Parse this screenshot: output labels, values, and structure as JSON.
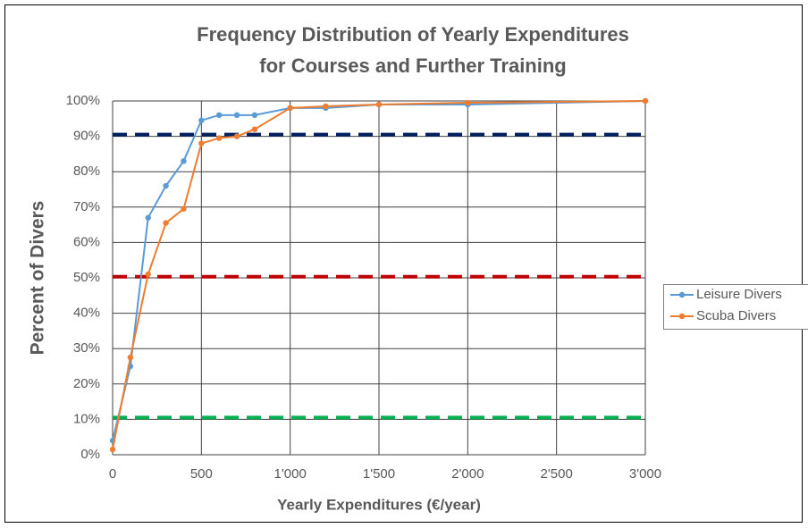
{
  "chart_data": {
    "type": "line",
    "title": [
      "Frequency Distribution of Yearly Expenditures",
      "for Courses and Further Training"
    ],
    "x_label": "Yearly Expenditures (€/year)",
    "y_label": "Percent of Divers",
    "x": [
      0,
      100,
      200,
      300,
      400,
      500,
      600,
      700,
      800,
      1000,
      1200,
      1500,
      2000,
      3000
    ],
    "series": [
      {
        "name": "Leisure Divers",
        "color": "#5b9bd5",
        "values": [
          4,
          25,
          67,
          76,
          83,
          94.5,
          96,
          96,
          96,
          98,
          98,
          99,
          99,
          100
        ]
      },
      {
        "name": "Scuba Divers",
        "color": "#ed7d31",
        "values": [
          1.5,
          27.5,
          51,
          65.5,
          69.5,
          88,
          89.5,
          90,
          92,
          98,
          98.5,
          99,
          99.5,
          100
        ]
      }
    ],
    "reference_lines": [
      {
        "value": 90.5,
        "color": "#002060"
      },
      {
        "value": 50.3,
        "color": "#c00000"
      },
      {
        "value": 10.5,
        "color": "#00b050"
      }
    ],
    "xlim": [
      0,
      3000
    ],
    "xticks": [
      0,
      500,
      {
        "value": 1000,
        "label": "1'000"
      },
      {
        "value": 1500,
        "label": "1'500"
      },
      {
        "value": 2000,
        "label": "2'000"
      },
      {
        "value": 2500,
        "label": "2'500"
      },
      {
        "value": 3000,
        "label": "3'000"
      }
    ],
    "ylim": [
      0,
      100
    ],
    "yticks": [
      {
        "value": 0,
        "label": "0%"
      },
      {
        "value": 10,
        "label": "10%"
      },
      {
        "value": 20,
        "label": "20%"
      },
      {
        "value": 30,
        "label": "30%"
      },
      {
        "value": 40,
        "label": "40%"
      },
      {
        "value": 50,
        "label": "50%"
      },
      {
        "value": 60,
        "label": "60%"
      },
      {
        "value": 70,
        "label": "70%"
      },
      {
        "value": 80,
        "label": "80%"
      },
      {
        "value": 90,
        "label": "90%"
      },
      {
        "value": 100,
        "label": "100%"
      }
    ],
    "grid": true,
    "legend": "right"
  }
}
